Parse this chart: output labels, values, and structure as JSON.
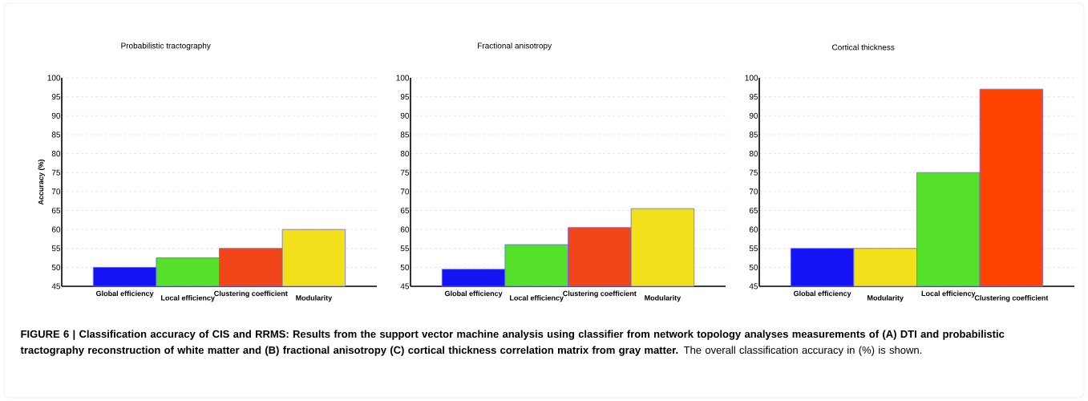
{
  "chart_data": [
    {
      "type": "bar",
      "title": "Probabilistic tractography",
      "ylabel": "Accuracy (%)",
      "categories": [
        "Global efficiency",
        "Local efficiency",
        "Clustering coefficient",
        "Modularity"
      ],
      "values": [
        50,
        52.5,
        55,
        60
      ],
      "colors": [
        "#1414f5",
        "#55e02a",
        "#f0461a",
        "#f2e01a"
      ],
      "ylim": [
        45,
        100
      ],
      "yticks": [
        45,
        50,
        55,
        60,
        65,
        70,
        75,
        80,
        85,
        90,
        95,
        100
      ],
      "grid": "y",
      "annotations": [
        "**FIGURE 6 | Classification accuracy of CIS and RRMS: Results from the support vector machine analysis using classifier from network topology analyses measurements of (A) DTI and probabilistic tractography reconstruction of white matter and (B) fractional anisotropy (C) cortical thickness correlation matrix from gray matter.** The overall classification accuracy in (%) is shown."
      ]
    },
    {
      "type": "bar",
      "title": "Fractional anisotropy",
      "categories": [
        "Global efficiency",
        "Local efficiency",
        "Clustering coefficient",
        "Modularity"
      ],
      "values": [
        49.5,
        56,
        60.5,
        65.5
      ],
      "colors": [
        "#1414f5",
        "#55e02a",
        "#f0461a",
        "#f2e01a"
      ],
      "ylim": [
        45,
        100
      ],
      "yticks": [
        45,
        50,
        55,
        60,
        65,
        70,
        75,
        80,
        85,
        90,
        95,
        100
      ],
      "grid": "y"
    },
    {
      "type": "bar",
      "title": "Cortical thickness",
      "categories": [
        "Global efficiency",
        "Modularity",
        "Local efficiency",
        "Clustering coefficient"
      ],
      "values": [
        55,
        55,
        75,
        97
      ],
      "colors": [
        "#1414f5",
        "#f2e01a",
        "#55e02a",
        "#ff4400"
      ],
      "ylim": [
        45,
        100
      ],
      "yticks": [
        45,
        50,
        55,
        60,
        65,
        70,
        75,
        80,
        85,
        90,
        95,
        100
      ],
      "grid": "y"
    }
  ]
}
